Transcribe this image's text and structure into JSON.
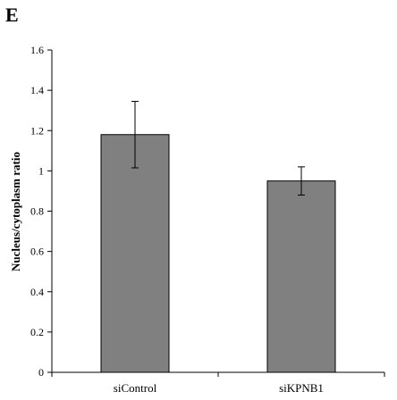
{
  "panel_label": "E",
  "chart_data": {
    "type": "bar",
    "title": "",
    "xlabel": "",
    "ylabel": "Nucleus/cytoplasm ratio",
    "categories": [
      "siControl",
      "siKPNB1"
    ],
    "values": [
      1.18,
      0.95
    ],
    "errors": [
      0.165,
      0.07
    ],
    "ylim": [
      0,
      1.6
    ],
    "yticks": [
      0,
      0.2,
      0.4,
      0.6,
      0.8,
      1,
      1.2,
      1.4,
      1.6
    ],
    "ytick_labels": [
      "0",
      "0.2",
      "0.4",
      "0.6",
      "0.8",
      "1",
      "1.2",
      "1.4",
      "1.6"
    ],
    "grid": false,
    "bar_color": "#808080",
    "bar_edge_color": "#000000"
  }
}
